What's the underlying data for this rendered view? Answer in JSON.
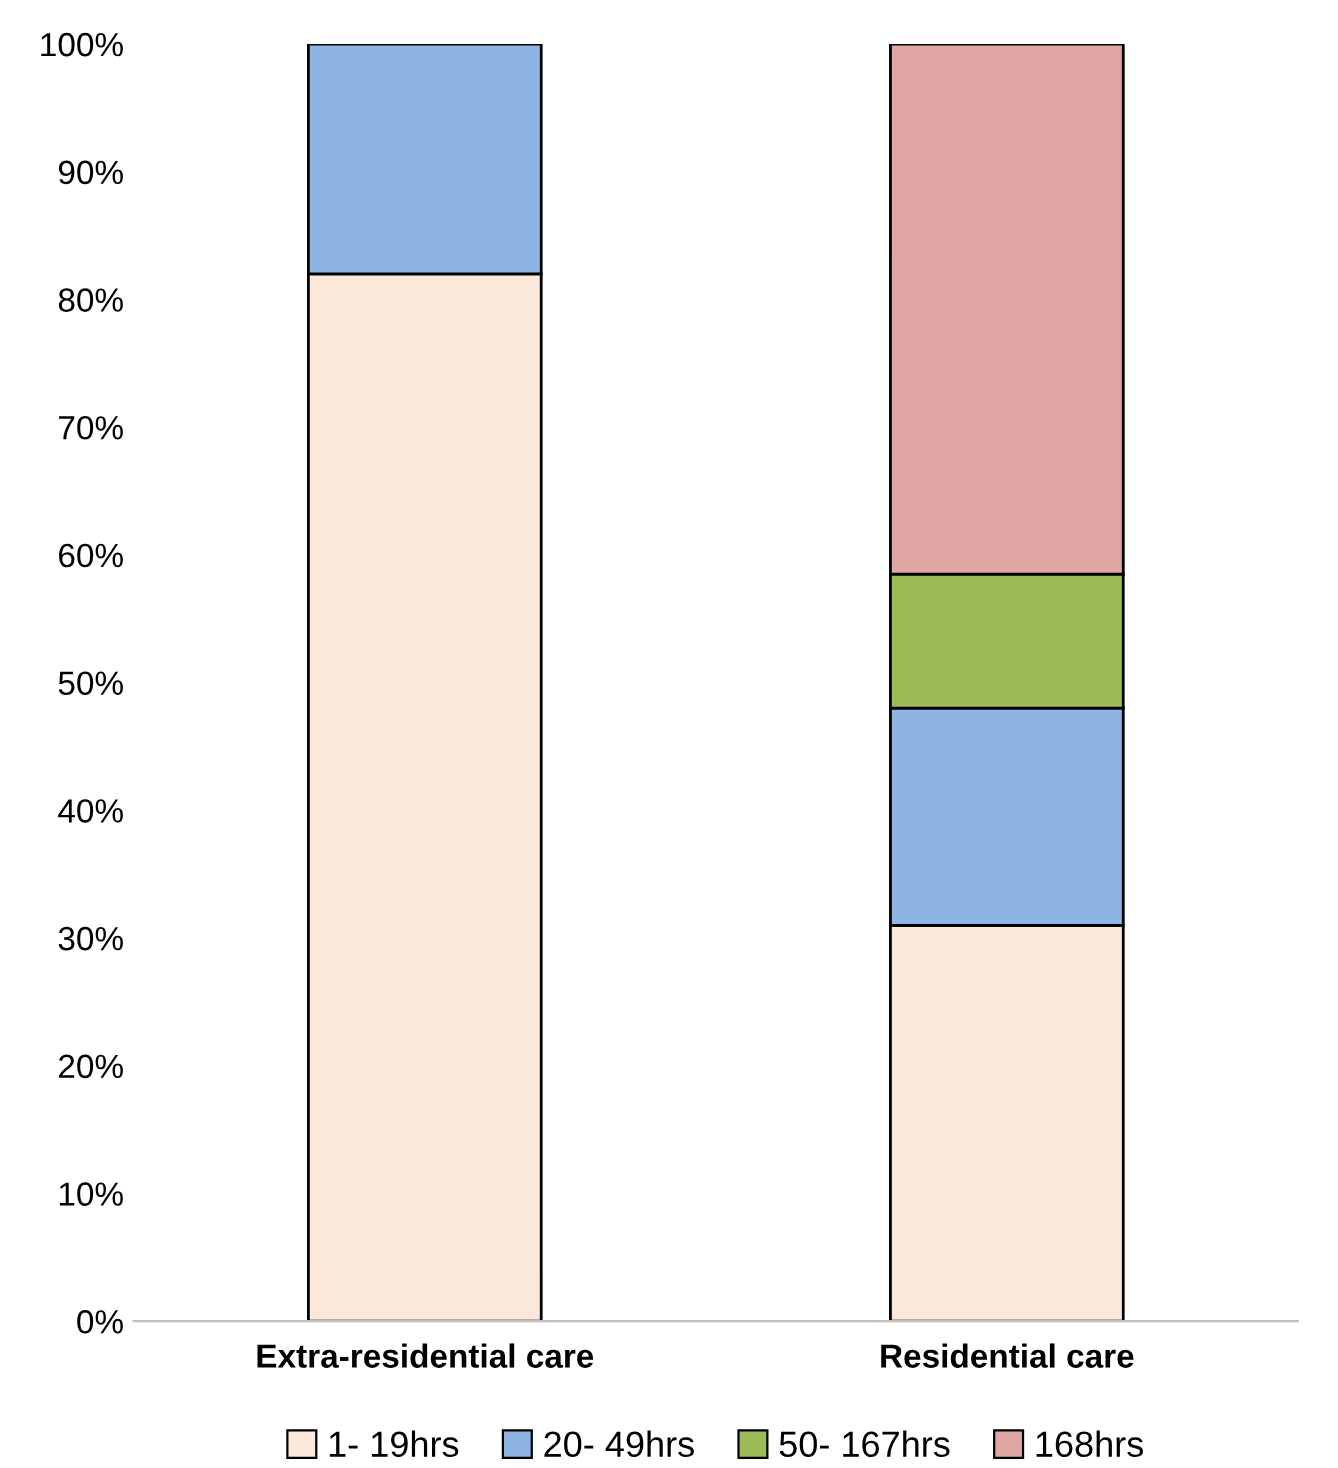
{
  "chart_data": {
    "type": "bar",
    "stacked": true,
    "categories": [
      "Extra-residential care",
      "Residential care"
    ],
    "series": [
      {
        "name": "1- 19hrs",
        "color": "#fce8da",
        "values": [
          82,
          31
        ]
      },
      {
        "name": "20- 49hrs",
        "color": "#8eb4e3",
        "values": [
          18,
          17
        ]
      },
      {
        "name": "50- 167hrs",
        "color": "#9bbb59",
        "values": [
          null,
          10.5
        ]
      },
      {
        "name": "168hrs",
        "color": "#e0a6a4",
        "values": [
          null,
          41.5
        ]
      }
    ],
    "ylim": [
      0,
      100
    ],
    "yticks": [
      {
        "value": 0,
        "label": "0%"
      },
      {
        "value": 10,
        "label": "10%"
      },
      {
        "value": 20,
        "label": "20%"
      },
      {
        "value": 30,
        "label": "30%"
      },
      {
        "value": 40,
        "label": "40%"
      },
      {
        "value": 50,
        "label": "50%"
      },
      {
        "value": 60,
        "label": "60%"
      },
      {
        "value": 70,
        "label": "70%"
      },
      {
        "value": 80,
        "label": "80%"
      },
      {
        "value": 90,
        "label": "90%"
      },
      {
        "value": 100,
        "label": "100%"
      }
    ],
    "grid": false,
    "legend": "bottom"
  }
}
